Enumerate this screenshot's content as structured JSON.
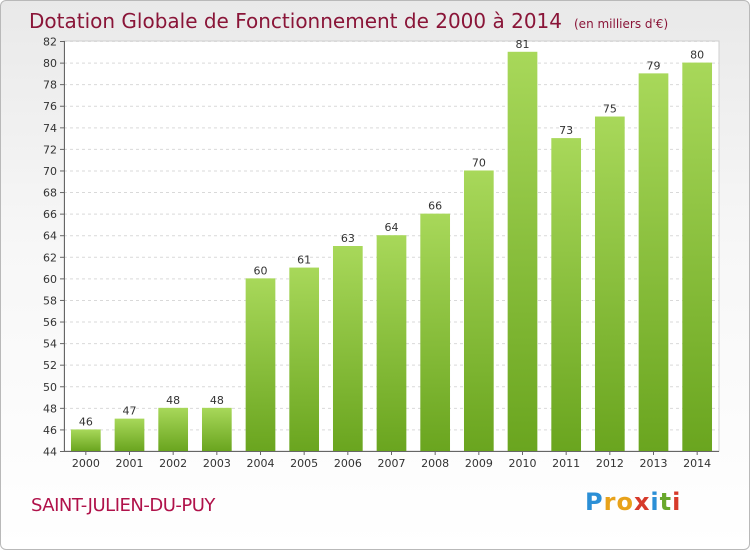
{
  "title": "Dotation Globale de Fonctionnement de 2000 à 2014",
  "unit_note": "(en milliers d'€)",
  "commune": "SAINT-JULIEN-DU-PUY",
  "logo": {
    "letters": [
      "P",
      "r",
      "o",
      "x",
      "i",
      "t",
      "i"
    ],
    "colors": [
      "#2b8fd6",
      "#e8a21a",
      "#e8a21a",
      "#d63a2b",
      "#2b8fd6",
      "#69a82c",
      "#d63a2b"
    ]
  },
  "colors": {
    "title": "#8a1538",
    "bar_light": "#a8d85a",
    "bar_dark": "#6aa51f",
    "grid": "#d9d9d9",
    "axis": "#666666"
  },
  "chart_data": {
    "type": "bar",
    "categories": [
      "2000",
      "2001",
      "2002",
      "2003",
      "2004",
      "2005",
      "2006",
      "2007",
      "2008",
      "2009",
      "2010",
      "2011",
      "2012",
      "2013",
      "2014"
    ],
    "values": [
      46,
      47,
      48,
      48,
      60,
      61,
      63,
      64,
      66,
      70,
      81,
      73,
      75,
      79,
      80
    ],
    "ylim": [
      44,
      82
    ],
    "yticks": [
      44,
      46,
      48,
      50,
      52,
      54,
      56,
      58,
      60,
      62,
      64,
      66,
      68,
      70,
      72,
      74,
      76,
      78,
      80,
      82
    ],
    "grid": true,
    "data_labels": true
  }
}
